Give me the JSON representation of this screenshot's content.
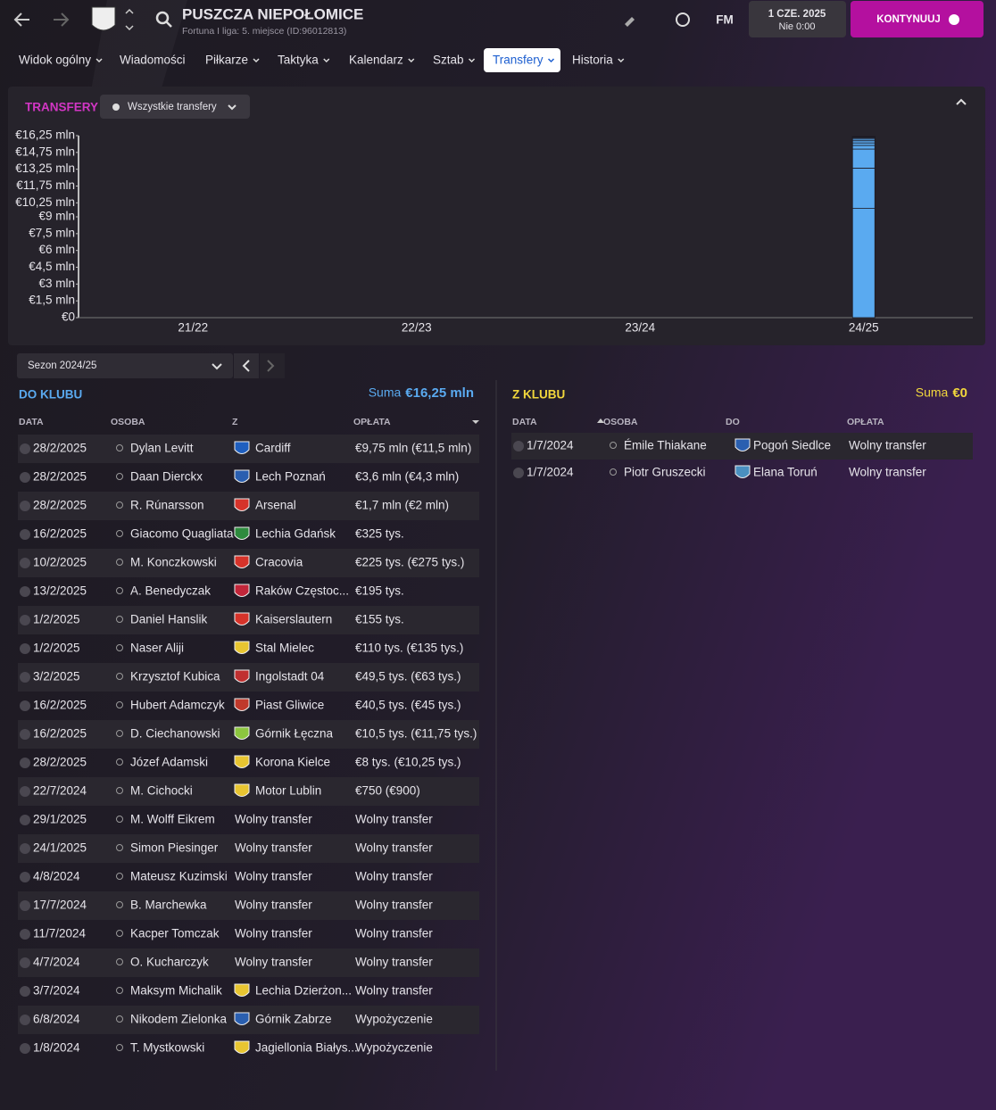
{
  "header": {
    "club": "PUSZCZA NIEPOŁOMICE",
    "subtitle": "Fortuna I liga: 5. miejsce (ID:96012813)",
    "badge": "FM",
    "date": "1 CZE. 2025",
    "time": "Nie 0:00",
    "continue": "KONTYNUUJ"
  },
  "nav": [
    "Widok ogólny",
    "Wiadomości",
    "Piłkarze",
    "Taktyka",
    "Kalendarz",
    "Sztab",
    "Transfery",
    "Historia"
  ],
  "panel": {
    "title": "TRANSFERY",
    "filter": "Wszystkie transfery"
  },
  "chart_data": {
    "type": "stacked-bar",
    "categories": [
      "21/22",
      "22/23",
      "23/24",
      "24/25"
    ],
    "color": "#5aaaf0",
    "ylim": [
      0,
      16.25
    ],
    "yticks": [
      {
        "value": 0,
        "label": "€0"
      },
      {
        "value": 1.5,
        "label": "€1,5 mln"
      },
      {
        "value": 3,
        "label": "€3 mln"
      },
      {
        "value": 4.5,
        "label": "€4,5 mln"
      },
      {
        "value": 6,
        "label": "€6 mln"
      },
      {
        "value": 7.5,
        "label": "€7,5 mln"
      },
      {
        "value": 9,
        "label": "€9 mln"
      },
      {
        "value": 10.25,
        "label": "€10,25 mln"
      },
      {
        "value": 11.75,
        "label": "€11,75 mln"
      },
      {
        "value": 13.25,
        "label": "€13,25 mln"
      },
      {
        "value": 14.75,
        "label": "€14,75 mln"
      },
      {
        "value": 16.25,
        "label": "€16,25 mln"
      }
    ],
    "series": [
      {
        "values": [
          null,
          null,
          null,
          9.75
        ]
      },
      {
        "values": [
          null,
          null,
          null,
          3.6
        ]
      },
      {
        "values": [
          null,
          null,
          null,
          1.7
        ]
      },
      {
        "values": [
          null,
          null,
          null,
          0.325
        ]
      },
      {
        "values": [
          null,
          null,
          null,
          0.225
        ]
      },
      {
        "values": [
          null,
          null,
          null,
          0.195
        ]
      },
      {
        "values": [
          null,
          null,
          null,
          0.155
        ]
      },
      {
        "values": [
          null,
          null,
          null,
          0.11
        ]
      },
      {
        "values": [
          null,
          null,
          null,
          0.0495
        ]
      },
      {
        "values": [
          null,
          null,
          null,
          0.0405
        ]
      },
      {
        "values": [
          null,
          null,
          null,
          0.0105
        ]
      },
      {
        "values": [
          null,
          null,
          null,
          0.008
        ]
      },
      {
        "values": [
          null,
          null,
          null,
          0.00075
        ]
      }
    ]
  },
  "season": "Sezon 2024/25",
  "incoming": {
    "title": "DO KLUBU",
    "sum_label": "Suma",
    "sum": "€16,25 mln",
    "columns": [
      "DATA",
      "OSOBA",
      "Z",
      "OPŁATA"
    ],
    "rows": [
      {
        "date": "28/2/2025",
        "person": "Dylan Levitt",
        "club": "Cardiff",
        "fee": "€9,75 mln (€11,5 mln)",
        "crest": "#1f5fbf"
      },
      {
        "date": "28/2/2025",
        "person": "Daan Dierckx",
        "club": "Lech Poznań",
        "fee": "€3,6 mln (€4,3 mln)",
        "crest": "#2a5fb0"
      },
      {
        "date": "28/2/2025",
        "person": "R. Rúnarsson",
        "club": "Arsenal",
        "fee": "€1,7 mln (€2 mln)",
        "crest": "#d6332a"
      },
      {
        "date": "16/2/2025",
        "person": "Giacomo Quagliata",
        "club": "Lechia Gdańsk",
        "fee": "€325 tys.",
        "crest": "#2e8b3e"
      },
      {
        "date": "10/2/2025",
        "person": "M. Konczkowski",
        "club": "Cracovia",
        "fee": "€225 tys. (€275 tys.)",
        "crest": "#d6332a"
      },
      {
        "date": "13/2/2025",
        "person": "A. Benedyczak",
        "club": "Raków Częstoc...",
        "fee": "€195 tys.",
        "crest": "#c2263a"
      },
      {
        "date": "1/2/2025",
        "person": "Daniel Hanslik",
        "club": "Kaiserslautern",
        "fee": "€155 tys.",
        "crest": "#d6332a"
      },
      {
        "date": "1/2/2025",
        "person": "Naser Aliji",
        "club": "Stal Mielec",
        "fee": "€110 tys. (€135 tys.)",
        "crest": "#e8c531"
      },
      {
        "date": "3/2/2025",
        "person": "Krzysztof Kubica",
        "club": "Ingolstadt 04",
        "fee": "€49,5 tys. (€63 tys.)",
        "crest": "#c03030"
      },
      {
        "date": "16/2/2025",
        "person": "Hubert Adamczyk",
        "club": "Piast Gliwice",
        "fee": "€40,5 tys. (€45 tys.)",
        "crest": "#c0392b"
      },
      {
        "date": "16/2/2025",
        "person": "D. Ciechanowski",
        "club": "Górnik Łęczna",
        "fee": "€10,5 tys. (€11,75 tys.)",
        "crest": "#8cc63f"
      },
      {
        "date": "28/2/2025",
        "person": "Józef Adamski",
        "club": "Korona Kielce",
        "fee": "€8 tys. (€10,25 tys.)",
        "crest": "#e8c531"
      },
      {
        "date": "22/7/2024",
        "person": "M. Cichocki",
        "club": "Motor Lublin",
        "fee": "€750 (€900)",
        "crest": "#e8c531"
      },
      {
        "date": "29/1/2025",
        "person": "M. Wolff Eikrem",
        "club": "Wolny transfer",
        "fee": "Wolny transfer"
      },
      {
        "date": "24/1/2025",
        "person": "Simon Piesinger",
        "club": "Wolny transfer",
        "fee": "Wolny transfer"
      },
      {
        "date": "4/8/2024",
        "person": "Mateusz Kuzimski",
        "club": "Wolny transfer",
        "fee": "Wolny transfer"
      },
      {
        "date": "17/7/2024",
        "person": "B. Marchewka",
        "club": "Wolny transfer",
        "fee": "Wolny transfer"
      },
      {
        "date": "11/7/2024",
        "person": "Kacper Tomczak",
        "club": "Wolny transfer",
        "fee": "Wolny transfer"
      },
      {
        "date": "4/7/2024",
        "person": "O. Kucharczyk",
        "club": "Wolny transfer",
        "fee": "Wolny transfer"
      },
      {
        "date": "3/7/2024",
        "person": "Maksym Michalik",
        "club": "Lechia Dzierżon...",
        "fee": "Wolny transfer",
        "crest": "#e8c531"
      },
      {
        "date": "6/8/2024",
        "person": "Nikodem Zielonka",
        "club": "Górnik Zabrze",
        "fee": "Wypożyczenie",
        "crest": "#2a5fb0"
      },
      {
        "date": "1/8/2024",
        "person": "T. Mystkowski",
        "club": "Jagiellonia Białys...",
        "fee": "Wypożyczenie",
        "crest": "#e8c531"
      }
    ]
  },
  "outgoing": {
    "title": "Z KLUBU",
    "sum_label": "Suma",
    "sum": "€0",
    "columns": [
      "DATA",
      "OSOBA",
      "DO",
      "OPŁATA"
    ],
    "rows": [
      {
        "date": "1/7/2024",
        "person": "Émile Thiakane",
        "club": "Pogoń Siedlce",
        "fee": "Wolny transfer",
        "crest": "#2a5fb0"
      },
      {
        "date": "1/7/2024",
        "person": "Piotr Gruszecki",
        "club": "Elana Toruń",
        "fee": "Wolny transfer",
        "crest": "#4a90c0"
      }
    ]
  }
}
